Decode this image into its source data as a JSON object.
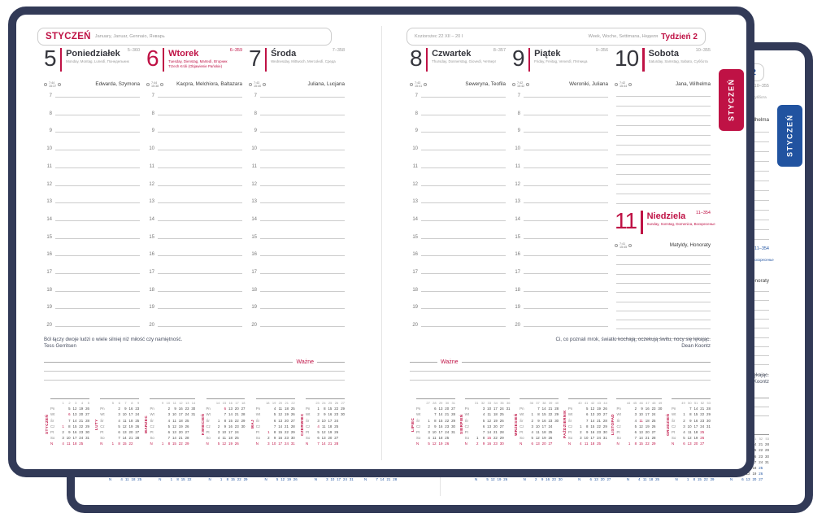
{
  "colors": {
    "navy_cover": "#323a57",
    "red_accent": "#bf1245",
    "blue_accent": "#2153a0"
  },
  "tab_label": "STYCZEŃ",
  "header": {
    "month": "STYCZEŃ",
    "month_langs": "January, Januar, Gennaio, Январь",
    "zodiac": "Koziorożec 22 XII – 20 I",
    "week_langs": "Week, Woche, Settimana, Неделя",
    "week_label": "Tydzień 2"
  },
  "hours": [
    "7",
    "8",
    "9",
    "10",
    "11",
    "12",
    "13",
    "14",
    "15",
    "16",
    "17",
    "18",
    "19",
    "20"
  ],
  "days": [
    {
      "num": "5",
      "name": "Poniedziałek",
      "sub": "Monday, Montag, Lunedì, Понедельник",
      "counter": "5–360",
      "sunrise": "7:44",
      "sunset": "15:37",
      "names": "Edwarda, Szymona",
      "holiday": false
    },
    {
      "num": "6",
      "name": "Wtorek",
      "sub": "Tuesday, Dienstag, Martedì, Вторник",
      "sub2": "Trzech Króli (Objawienie Pańskie)",
      "counter": "6–359",
      "sunrise": "7:44",
      "sunset": "15:38",
      "names": "Kacpra, Melchiora, Baltazara",
      "holiday": true
    },
    {
      "num": "7",
      "name": "Środa",
      "sub": "Wednesday, Mittwoch, Mercoledì, Среда",
      "counter": "7–358",
      "sunrise": "7:43",
      "sunset": "15:40",
      "names": "Juliana, Lucjana",
      "holiday": false
    },
    {
      "num": "8",
      "name": "Czwartek",
      "sub": "Thursday, Donnerstag, Giovedì, Четверг",
      "counter": "8–357",
      "sunrise": "7:43",
      "sunset": "15:41",
      "names": "Seweryna, Teofila",
      "holiday": false
    },
    {
      "num": "9",
      "name": "Piątek",
      "sub": "Friday, Freitag, Venerdì, Пятница",
      "counter": "9–356",
      "sunrise": "7:42",
      "sunset": "15:42",
      "names": "Weroniki, Juliana",
      "holiday": false
    },
    {
      "num": "10",
      "name": "Sobota",
      "sub": "Saturday, Samstag, Sabato, Суббота",
      "counter": "10–355",
      "sunrise": "7:42",
      "sunset": "15:44",
      "names": "Jana, Wilhelma",
      "holiday": false
    },
    {
      "num": "11",
      "name": "Niedziela",
      "sub": "Sunday, Sonntag, Domenica, Воскресенье",
      "counter": "11–354",
      "sunrise": "7:41",
      "sunset": "15:45",
      "names": "Matyldy, Honoraty",
      "holiday": true
    }
  ],
  "quotes": {
    "left_text": "Ból łączy dwoje ludzi o wiele silniej niż miłość czy namiętność.",
    "left_author": "Tess Gerritsen",
    "right_text": "Ci, co poznali mrok, światło kochają, oczekują świtu, nocy się lękając.",
    "right_author": "Dean Koontz"
  },
  "wazne_label": "Ważne",
  "day_abbrevs": [
    "Pn",
    "Wt",
    "Śr",
    "Cz",
    "Pt",
    "So",
    "N"
  ],
  "minical": {
    "months": [
      {
        "name": "STYCZEŃ",
        "weeks": [
          "1",
          "2",
          "3",
          "4",
          "5"
        ],
        "holidays": [
          1,
          6
        ],
        "rows": [
          [
            "",
            "5",
            "12",
            "19",
            "26"
          ],
          [
            "",
            "6",
            "13",
            "20",
            "27"
          ],
          [
            "",
            "7",
            "14",
            "21",
            "28"
          ],
          [
            "1",
            "8",
            "15",
            "22",
            "29"
          ],
          [
            "2",
            "9",
            "16",
            "23",
            "30"
          ],
          [
            "3",
            "10",
            "17",
            "24",
            "31"
          ],
          [
            "4",
            "11",
            "18",
            "25",
            ""
          ]
        ]
      },
      {
        "name": "LUTY",
        "weeks": [
          "5",
          "6",
          "7",
          "8",
          "9"
        ],
        "holidays": [],
        "rows": [
          [
            "",
            "2",
            "9",
            "16",
            "23"
          ],
          [
            "",
            "3",
            "10",
            "17",
            "24"
          ],
          [
            "",
            "4",
            "11",
            "18",
            "25"
          ],
          [
            "",
            "5",
            "12",
            "19",
            "26"
          ],
          [
            "",
            "6",
            "13",
            "20",
            "27"
          ],
          [
            "",
            "7",
            "14",
            "21",
            "28"
          ],
          [
            "1",
            "8",
            "15",
            "22",
            ""
          ]
        ]
      },
      {
        "name": "MARZEC",
        "weeks": [
          "9",
          "10",
          "11",
          "12",
          "13",
          "14"
        ],
        "holidays": [],
        "rows": [
          [
            "",
            "2",
            "9",
            "16",
            "23",
            "30"
          ],
          [
            "",
            "3",
            "10",
            "17",
            "24",
            "31"
          ],
          [
            "",
            "4",
            "11",
            "18",
            "25",
            ""
          ],
          [
            "",
            "5",
            "12",
            "19",
            "26",
            ""
          ],
          [
            "",
            "6",
            "13",
            "20",
            "27",
            ""
          ],
          [
            "",
            "7",
            "14",
            "21",
            "28",
            ""
          ],
          [
            "1",
            "8",
            "15",
            "22",
            "29",
            ""
          ]
        ]
      },
      {
        "name": "KWIECIEŃ",
        "weeks": [
          "14",
          "15",
          "16",
          "17",
          "18"
        ],
        "holidays": [
          5,
          6
        ],
        "rows": [
          [
            "",
            "6",
            "13",
            "20",
            "27"
          ],
          [
            "",
            "7",
            "14",
            "21",
            "28"
          ],
          [
            "1",
            "8",
            "15",
            "22",
            "29"
          ],
          [
            "2",
            "9",
            "16",
            "23",
            "30"
          ],
          [
            "3",
            "10",
            "17",
            "24",
            ""
          ],
          [
            "4",
            "11",
            "18",
            "25",
            ""
          ],
          [
            "5",
            "12",
            "19",
            "26",
            ""
          ]
        ]
      },
      {
        "name": "MAJ",
        "weeks": [
          "18",
          "19",
          "20",
          "21",
          "22"
        ],
        "holidays": [
          1,
          3,
          24
        ],
        "rows": [
          [
            "",
            "4",
            "11",
            "18",
            "25"
          ],
          [
            "",
            "5",
            "12",
            "19",
            "26"
          ],
          [
            "",
            "6",
            "13",
            "20",
            "27"
          ],
          [
            "",
            "7",
            "14",
            "21",
            "28"
          ],
          [
            "1",
            "8",
            "15",
            "22",
            "29"
          ],
          [
            "2",
            "9",
            "16",
            "23",
            "30"
          ],
          [
            "3",
            "10",
            "17",
            "24",
            "31"
          ]
        ]
      },
      {
        "name": "CZERWIEC",
        "weeks": [
          "23",
          "24",
          "25",
          "26",
          "27"
        ],
        "holidays": [
          4
        ],
        "rows": [
          [
            "1",
            "8",
            "15",
            "22",
            "29"
          ],
          [
            "2",
            "9",
            "16",
            "23",
            "30"
          ],
          [
            "3",
            "10",
            "17",
            "24",
            ""
          ],
          [
            "4",
            "11",
            "18",
            "25",
            ""
          ],
          [
            "5",
            "12",
            "19",
            "26",
            ""
          ],
          [
            "6",
            "13",
            "20",
            "27",
            ""
          ],
          [
            "7",
            "14",
            "21",
            "28",
            ""
          ]
        ]
      },
      {
        "name": "LIPIEC",
        "weeks": [
          "27",
          "28",
          "29",
          "30",
          "31"
        ],
        "holidays": [],
        "rows": [
          [
            "",
            "6",
            "13",
            "20",
            "27"
          ],
          [
            "",
            "7",
            "14",
            "21",
            "28"
          ],
          [
            "1",
            "8",
            "15",
            "22",
            "29"
          ],
          [
            "2",
            "9",
            "16",
            "23",
            "30"
          ],
          [
            "3",
            "10",
            "17",
            "24",
            "31"
          ],
          [
            "4",
            "11",
            "18",
            "25",
            ""
          ],
          [
            "5",
            "12",
            "19",
            "26",
            ""
          ]
        ]
      },
      {
        "name": "SIERPIEŃ",
        "weeks": [
          "31",
          "32",
          "33",
          "34",
          "35",
          "36"
        ],
        "holidays": [
          15
        ],
        "rows": [
          [
            "",
            "3",
            "10",
            "17",
            "24",
            "31"
          ],
          [
            "",
            "4",
            "11",
            "18",
            "25",
            ""
          ],
          [
            "",
            "5",
            "12",
            "19",
            "26",
            ""
          ],
          [
            "",
            "6",
            "13",
            "20",
            "27",
            ""
          ],
          [
            "",
            "7",
            "14",
            "21",
            "28",
            ""
          ],
          [
            "1",
            "8",
            "15",
            "22",
            "29",
            ""
          ],
          [
            "2",
            "9",
            "16",
            "23",
            "30",
            ""
          ]
        ]
      },
      {
        "name": "WRZESIEŃ",
        "weeks": [
          "36",
          "37",
          "38",
          "39",
          "40"
        ],
        "holidays": [],
        "rows": [
          [
            "",
            "7",
            "14",
            "21",
            "28"
          ],
          [
            "1",
            "8",
            "15",
            "22",
            "29"
          ],
          [
            "2",
            "9",
            "16",
            "23",
            "30"
          ],
          [
            "3",
            "10",
            "17",
            "24",
            ""
          ],
          [
            "4",
            "11",
            "18",
            "25",
            ""
          ],
          [
            "5",
            "12",
            "19",
            "26",
            ""
          ],
          [
            "6",
            "13",
            "20",
            "27",
            ""
          ]
        ]
      },
      {
        "name": "PAŹDZIERNIK",
        "weeks": [
          "40",
          "41",
          "42",
          "43",
          "44"
        ],
        "holidays": [],
        "rows": [
          [
            "",
            "5",
            "12",
            "19",
            "26"
          ],
          [
            "",
            "6",
            "13",
            "20",
            "27"
          ],
          [
            "",
            "7",
            "14",
            "21",
            "28"
          ],
          [
            "1",
            "8",
            "15",
            "22",
            "29"
          ],
          [
            "2",
            "9",
            "16",
            "23",
            "30"
          ],
          [
            "3",
            "10",
            "17",
            "24",
            "31"
          ],
          [
            "4",
            "11",
            "18",
            "25",
            ""
          ]
        ]
      },
      {
        "name": "LISTOPAD",
        "weeks": [
          "44",
          "45",
          "46",
          "47",
          "48",
          "49"
        ],
        "holidays": [
          1,
          11
        ],
        "rows": [
          [
            "",
            "2",
            "9",
            "16",
            "23",
            "30"
          ],
          [
            "",
            "3",
            "10",
            "17",
            "24",
            ""
          ],
          [
            "",
            "4",
            "11",
            "18",
            "25",
            ""
          ],
          [
            "",
            "5",
            "12",
            "19",
            "26",
            ""
          ],
          [
            "",
            "6",
            "13",
            "20",
            "27",
            ""
          ],
          [
            "",
            "7",
            "14",
            "21",
            "28",
            ""
          ],
          [
            "1",
            "8",
            "15",
            "22",
            "29",
            ""
          ]
        ]
      },
      {
        "name": "GRUDZIEŃ",
        "weeks": [
          "49",
          "50",
          "51",
          "52",
          "53"
        ],
        "holidays": [
          25,
          26
        ],
        "rows": [
          [
            "",
            "7",
            "14",
            "21",
            "28"
          ],
          [
            "1",
            "8",
            "15",
            "22",
            "29"
          ],
          [
            "2",
            "9",
            "16",
            "23",
            "30"
          ],
          [
            "3",
            "10",
            "17",
            "24",
            "31"
          ],
          [
            "4",
            "11",
            "18",
            "25",
            ""
          ],
          [
            "5",
            "12",
            "19",
            "26",
            ""
          ],
          [
            "6",
            "13",
            "20",
            "27",
            ""
          ]
        ]
      }
    ]
  }
}
